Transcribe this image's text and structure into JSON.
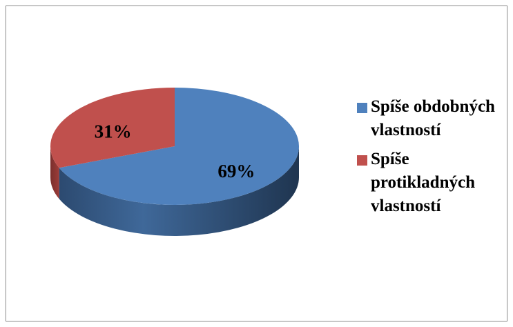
{
  "chart_data": {
    "type": "pie3d",
    "categories": [
      "Spíše obdobných vlastností",
      "Spíše protikladných vlastností"
    ],
    "values": [
      69,
      31
    ],
    "value_labels": [
      "69%",
      "31%"
    ],
    "colors": [
      "#4f81bd",
      "#c0504d"
    ],
    "legend": "right"
  }
}
